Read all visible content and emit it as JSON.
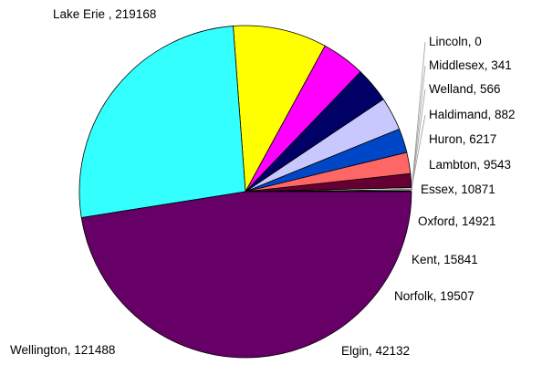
{
  "chart_data": {
    "type": "pie",
    "title": "",
    "start_angle_deg": 0,
    "direction": "clockwise",
    "series": [
      {
        "slices": [
          {
            "label": "Lincoln, 0",
            "name": "Lincoln",
            "value": 0,
            "color": "#ffffcc"
          },
          {
            "label": "Middlesex, 341",
            "name": "Middlesex",
            "value": 341,
            "color": "#ffff66"
          },
          {
            "label": "Welland, 566",
            "name": "Welland",
            "value": 566,
            "color": "#ccffcc"
          },
          {
            "label": "Haldimand, 882",
            "name": "Haldimand",
            "value": 882,
            "color": "#ffffff"
          },
          {
            "label": "Huron, 6217",
            "name": "Huron",
            "value": 6217,
            "color": "#660033"
          },
          {
            "label": "Lambton, 9543",
            "name": "Lambton",
            "value": 9543,
            "color": "#ff6666"
          },
          {
            "label": "Essex, 10871",
            "name": "Essex",
            "value": 10871,
            "color": "#0047c8"
          },
          {
            "label": "Oxford, 14921",
            "name": "Oxford",
            "value": 14921,
            "color": "#c8c8ff"
          },
          {
            "label": "Kent, 15841",
            "name": "Kent",
            "value": 15841,
            "color": "#000066"
          },
          {
            "label": "Norfolk, 19507",
            "name": "Norfolk",
            "value": 19507,
            "color": "#ff00ff"
          },
          {
            "label": "Elgin, 42132",
            "name": "Elgin",
            "value": 42132,
            "color": "#ffff00"
          },
          {
            "label": "Wellington, 121488",
            "name": "Wellington",
            "value": 121488,
            "color": "#33ffff"
          },
          {
            "label": "Lake Erie , 219168",
            "name": "Lake Erie",
            "value": 219168,
            "color": "#660066"
          }
        ]
      }
    ],
    "legend": "none",
    "data_labels": "outside"
  }
}
